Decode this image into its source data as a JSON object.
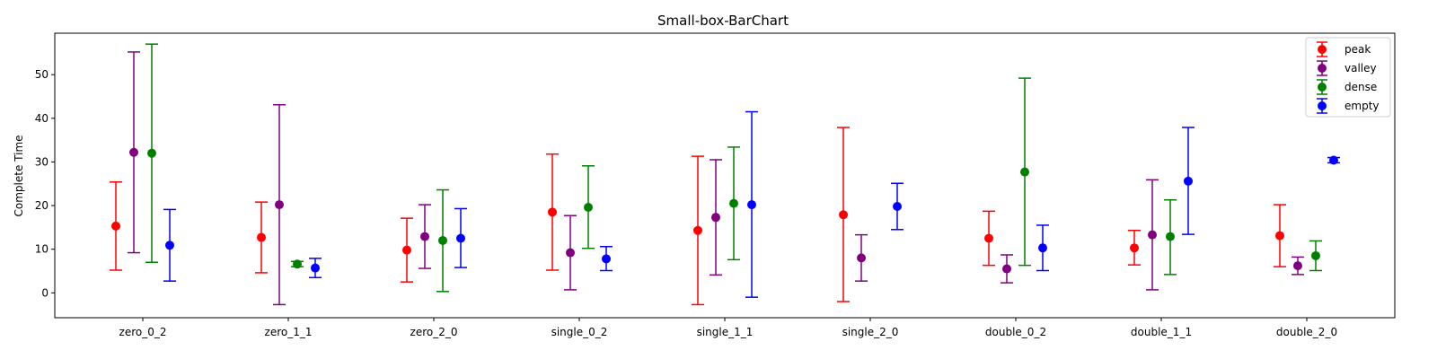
{
  "chart_data": {
    "type": "errorbar",
    "title": "Small-box-BarChart",
    "xlabel": "",
    "ylabel": "Complete Time",
    "ylim": [
      -5.7,
      59.5
    ],
    "yticks": [
      0,
      10,
      20,
      30,
      40,
      50
    ],
    "grid": false,
    "legend_position": "top-right",
    "categories": [
      "zero_0_2",
      "zero_1_1",
      "zero_2_0",
      "single_0_2",
      "single_1_1",
      "single_2_0",
      "double_0_2",
      "double_1_1",
      "double_2_0"
    ],
    "series": [
      {
        "name": "peak",
        "color": "#ff0000",
        "values": [
          15.3,
          12.7,
          9.8,
          18.5,
          14.3,
          17.9,
          12.5,
          10.3,
          13.1
        ],
        "lower": [
          5.2,
          4.6,
          2.5,
          5.2,
          -2.7,
          -2.0,
          6.3,
          6.4,
          6.0
        ],
        "upper": [
          25.4,
          20.8,
          17.1,
          31.8,
          31.3,
          37.9,
          18.7,
          14.3,
          20.2
        ]
      },
      {
        "name": "valley",
        "color": "#800080",
        "values": [
          32.2,
          20.2,
          12.9,
          9.2,
          17.3,
          8.0,
          5.5,
          13.3,
          6.2
        ],
        "lower": [
          9.2,
          -2.7,
          5.6,
          0.7,
          4.1,
          2.7,
          2.3,
          0.7,
          4.2
        ],
        "upper": [
          55.2,
          43.1,
          20.2,
          17.7,
          30.5,
          13.3,
          8.7,
          25.9,
          8.2
        ]
      },
      {
        "name": "dense",
        "color": "#008000",
        "values": [
          32.0,
          6.6,
          12.0,
          19.6,
          20.5,
          null,
          27.7,
          12.9,
          8.5
        ],
        "lower": [
          7.0,
          6.0,
          0.3,
          10.2,
          7.6,
          null,
          6.3,
          4.2,
          5.1
        ],
        "upper": [
          57.0,
          7.2,
          23.6,
          29.1,
          33.4,
          null,
          49.2,
          21.3,
          11.9
        ]
      },
      {
        "name": "empty",
        "color": "#0000ff",
        "values": [
          10.9,
          5.7,
          12.5,
          7.8,
          20.2,
          19.8,
          10.3,
          25.6,
          30.4
        ],
        "lower": [
          2.7,
          3.5,
          5.8,
          5.1,
          -1.0,
          14.5,
          5.1,
          13.4,
          29.8
        ],
        "upper": [
          19.1,
          7.9,
          19.3,
          10.6,
          41.5,
          25.1,
          15.5,
          37.9,
          31.0
        ]
      }
    ]
  }
}
